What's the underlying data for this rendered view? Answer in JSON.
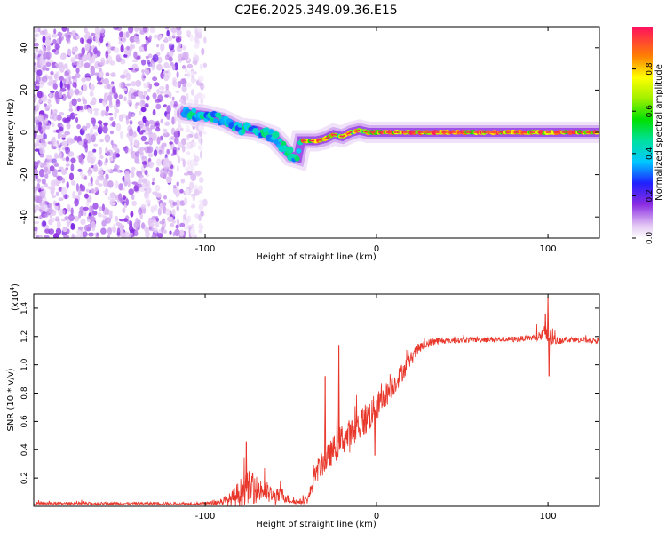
{
  "title": "C2E6.2025.349.09.36.E15",
  "chart_data": [
    {
      "type": "heatmap",
      "name": "spectrogram",
      "xlabel": "Height of straight line (km)",
      "ylabel": "Frequency (Hz)",
      "xlim": [
        -200,
        130
      ],
      "ylim": [
        -50,
        50
      ],
      "xticks": [
        {
          "value": -100,
          "label": "-100"
        },
        {
          "value": 0,
          "label": "0"
        },
        {
          "value": 100,
          "label": "100"
        }
      ],
      "yticks": [
        {
          "value": 40,
          "label": "40"
        },
        {
          "value": 20,
          "label": "20"
        },
        {
          "value": 0,
          "label": "0"
        },
        {
          "value": -20,
          "label": "-20"
        },
        {
          "value": -40,
          "label": "-40"
        }
      ],
      "colorbar": {
        "label": "Normalized spectral amplitude",
        "range": [
          0,
          1
        ],
        "ticks": [
          {
            "value": 0.0,
            "label": "0.0"
          },
          {
            "value": 0.2,
            "label": "0.2"
          },
          {
            "value": 0.4,
            "label": "0.4"
          },
          {
            "value": 0.6,
            "label": "0.6"
          },
          {
            "value": 0.8,
            "label": "0.8"
          }
        ]
      },
      "ridge": {
        "x": [
          -112,
          -100,
          -90,
          -80,
          -70,
          -60,
          -50,
          -46,
          -44,
          -40,
          -35,
          -30,
          -25,
          -20,
          -15,
          -10,
          -5,
          0,
          10,
          20,
          40,
          60,
          80,
          100,
          130
        ],
        "freq": [
          9,
          8,
          6,
          2,
          1,
          -2,
          -11,
          -12,
          -4,
          -4,
          -4,
          -3,
          -1,
          -2,
          0,
          1,
          0,
          0,
          0,
          0,
          0,
          0,
          0,
          0,
          0
        ]
      }
    },
    {
      "type": "line",
      "name": "snr",
      "xlabel": "Height of straight line (km)",
      "ylabel": "SNR (10 * v/v)",
      "yscale_label": "(x10",
      "yscale_exponent": "4",
      "yscale_close": ")",
      "xlim": [
        -200,
        130
      ],
      "ylim": [
        0,
        1.5
      ],
      "xticks": [
        {
          "value": -100,
          "label": "-100"
        },
        {
          "value": 0,
          "label": "0"
        },
        {
          "value": 100,
          "label": "100"
        }
      ],
      "yticks": [
        {
          "value": 0.2,
          "label": "0.2"
        },
        {
          "value": 0.4,
          "label": "0.4"
        },
        {
          "value": 0.6,
          "label": "0.6"
        },
        {
          "value": 0.8,
          "label": "0.8"
        },
        {
          "value": 1.0,
          "label": "1.0"
        },
        {
          "value": 1.2,
          "label": "1.2"
        },
        {
          "value": 1.4,
          "label": "1.4"
        }
      ],
      "color": "#e8362a",
      "envelope": {
        "x": [
          -200,
          -100,
          -92,
          -85,
          -80,
          -75,
          -70,
          -65,
          -60,
          -55,
          -50,
          -45,
          -40,
          -35,
          -30,
          -25,
          -20,
          -15,
          -10,
          -5,
          0,
          5,
          10,
          15,
          20,
          25,
          30,
          35,
          40,
          60,
          80,
          90,
          95,
          98,
          100,
          102,
          105,
          110,
          130
        ],
        "y": [
          0.02,
          0.02,
          0.03,
          0.05,
          0.09,
          0.14,
          0.12,
          0.11,
          0.06,
          0.08,
          0.04,
          0.03,
          0.05,
          0.25,
          0.32,
          0.4,
          0.48,
          0.5,
          0.58,
          0.63,
          0.7,
          0.78,
          0.86,
          0.95,
          1.04,
          1.12,
          1.15,
          1.17,
          1.17,
          1.18,
          1.18,
          1.19,
          1.2,
          1.22,
          1.2,
          1.18,
          1.17,
          1.18,
          1.17
        ],
        "noise": [
          0.01,
          0.01,
          0.02,
          0.05,
          0.1,
          0.12,
          0.1,
          0.08,
          0.06,
          0.05,
          0.02,
          0.02,
          0.03,
          0.08,
          0.09,
          0.1,
          0.11,
          0.12,
          0.12,
          0.12,
          0.1,
          0.09,
          0.08,
          0.07,
          0.05,
          0.04,
          0.03,
          0.03,
          0.02,
          0.02,
          0.02,
          0.02,
          0.04,
          0.06,
          0.1,
          0.05,
          0.03,
          0.02,
          0.02
        ]
      },
      "spikes": [
        {
          "x": 100,
          "y": 1.48
        },
        {
          "x": 100.6,
          "y": 0.92
        },
        {
          "x": 98.5,
          "y": 1.36
        },
        {
          "x": -76,
          "y": 0.46
        },
        {
          "x": -30,
          "y": 0.92
        },
        {
          "x": -22,
          "y": 1.14
        },
        {
          "x": -1,
          "y": 0.36
        }
      ]
    }
  ]
}
